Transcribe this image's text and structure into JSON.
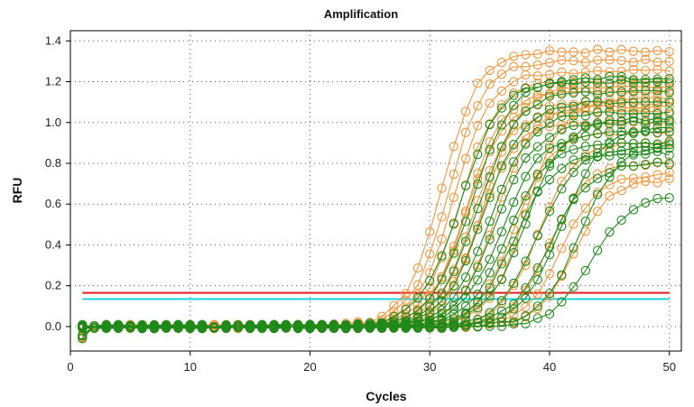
{
  "chart_data": {
    "type": "line",
    "title": "Amplification",
    "xlabel": "Cycles",
    "ylabel": "RFU",
    "xlim": [
      0,
      51
    ],
    "ylim": [
      -0.12,
      1.45
    ],
    "x_ticks": [
      0,
      10,
      20,
      30,
      40,
      50
    ],
    "y_ticks": [
      0.0,
      0.2,
      0.4,
      0.6,
      0.8,
      1.0,
      1.2,
      1.4
    ],
    "y_tick_labels": [
      "0.0",
      "0.2",
      "0.4",
      "0.6",
      "0.8",
      "1.0",
      "1.2",
      "1.4"
    ],
    "grid": "dotted",
    "colors": {
      "orange": "#f0963a",
      "green": "#1f8a1a",
      "threshold_red": "#e31a1c",
      "threshold_cyan": "#1ad6e0"
    },
    "thresholds": [
      {
        "color": "#e31a1c",
        "value": 0.165
      },
      {
        "color": "#1ad6e0",
        "value": 0.135
      }
    ],
    "x_cycles": [
      1,
      2,
      3,
      4,
      5,
      6,
      7,
      8,
      9,
      10,
      11,
      12,
      13,
      14,
      15,
      16,
      17,
      18,
      19,
      20,
      21,
      22,
      23,
      24,
      25,
      26,
      27,
      28,
      29,
      30,
      31,
      32,
      33,
      34,
      35,
      36,
      37,
      38,
      39,
      40,
      41,
      42,
      43,
      44,
      45,
      46,
      47,
      48,
      49,
      50
    ],
    "series_params": [
      {
        "color": "orange",
        "ct": 31.0,
        "plateau": 1.35,
        "k": 0.65
      },
      {
        "color": "orange",
        "ct": 31.5,
        "plateau": 1.3,
        "k": 0.65
      },
      {
        "color": "orange",
        "ct": 32.0,
        "plateau": 1.25,
        "k": 0.65
      },
      {
        "color": "orange",
        "ct": 32.5,
        "plateau": 1.2,
        "k": 0.65
      },
      {
        "color": "orange",
        "ct": 33.0,
        "plateau": 1.15,
        "k": 0.65
      },
      {
        "color": "orange",
        "ct": 33.0,
        "plateau": 1.1,
        "k": 0.65
      },
      {
        "color": "orange",
        "ct": 33.5,
        "plateau": 1.05,
        "k": 0.65
      },
      {
        "color": "orange",
        "ct": 34.0,
        "plateau": 1.0,
        "k": 0.65
      },
      {
        "color": "orange",
        "ct": 34.5,
        "plateau": 1.18,
        "k": 0.65
      },
      {
        "color": "orange",
        "ct": 35.5,
        "plateau": 1.08,
        "k": 0.65
      },
      {
        "color": "orange",
        "ct": 37.0,
        "plateau": 0.95,
        "k": 0.65
      },
      {
        "color": "orange",
        "ct": 39.0,
        "plateau": 0.9,
        "k": 0.65
      },
      {
        "color": "orange",
        "ct": 40.0,
        "plateau": 0.8,
        "k": 0.65
      },
      {
        "color": "orange",
        "ct": 41.0,
        "plateau": 0.75,
        "k": 0.65
      },
      {
        "color": "orange",
        "ct": 42.0,
        "plateau": 0.72,
        "k": 0.65
      },
      {
        "color": "orange",
        "ct": 38.0,
        "plateau": 1.12,
        "k": 0.65
      },
      {
        "color": "green",
        "ct": 32.5,
        "plateau": 1.2,
        "k": 0.6
      },
      {
        "color": "green",
        "ct": 33.5,
        "plateau": 1.22,
        "k": 0.6
      },
      {
        "color": "green",
        "ct": 34.0,
        "plateau": 1.15,
        "k": 0.6
      },
      {
        "color": "green",
        "ct": 34.5,
        "plateau": 1.1,
        "k": 0.6
      },
      {
        "color": "green",
        "ct": 35.0,
        "plateau": 1.05,
        "k": 0.6
      },
      {
        "color": "green",
        "ct": 35.5,
        "plateau": 1.0,
        "k": 0.6
      },
      {
        "color": "green",
        "ct": 36.0,
        "plateau": 0.95,
        "k": 0.6
      },
      {
        "color": "green",
        "ct": 36.5,
        "plateau": 0.9,
        "k": 0.6
      },
      {
        "color": "green",
        "ct": 37.0,
        "plateau": 0.85,
        "k": 0.6
      },
      {
        "color": "green",
        "ct": 38.0,
        "plateau": 1.02,
        "k": 0.6
      },
      {
        "color": "green",
        "ct": 39.0,
        "plateau": 0.88,
        "k": 0.6
      },
      {
        "color": "green",
        "ct": 40.0,
        "plateau": 0.8,
        "k": 0.6
      },
      {
        "color": "green",
        "ct": 41.0,
        "plateau": 0.98,
        "k": 0.6
      },
      {
        "color": "green",
        "ct": 42.5,
        "plateau": 0.9,
        "k": 0.6
      },
      {
        "color": "green",
        "ct": 43.5,
        "plateau": 0.64,
        "k": 0.6
      }
    ]
  }
}
